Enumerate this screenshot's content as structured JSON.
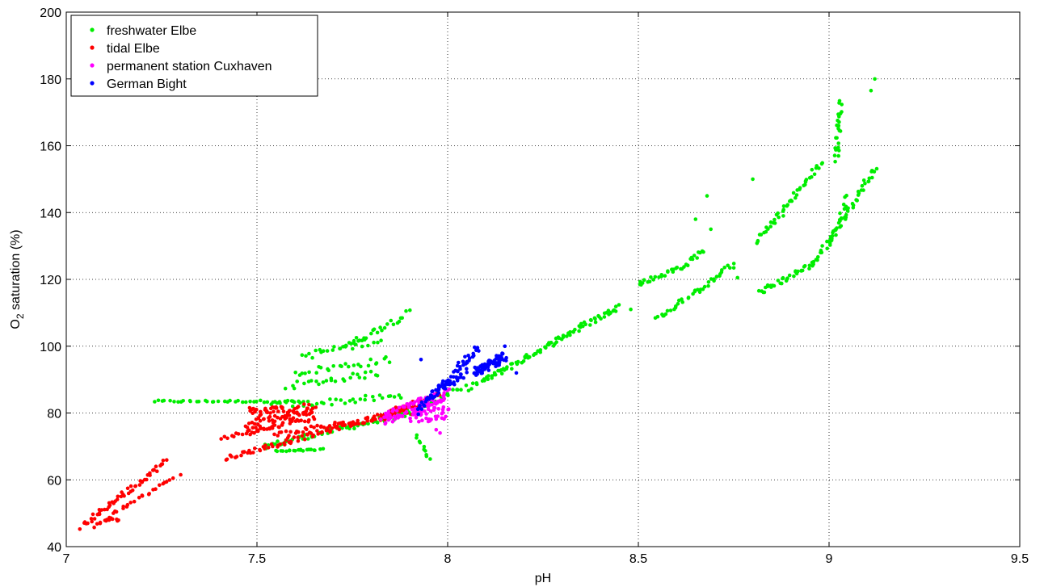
{
  "chart_data": {
    "type": "scatter",
    "title": "",
    "xlabel": "pH",
    "ylabel_main": "O",
    "ylabel_sub": "2",
    "ylabel_rest": " saturation (%)",
    "xlim": [
      7,
      9.5
    ],
    "ylim": [
      40,
      200
    ],
    "xticks": [
      7,
      7.5,
      8,
      8.5,
      9,
      9.5
    ],
    "xtick_labels": [
      "7",
      "7.5",
      "8",
      "8.5",
      "9",
      "9.5"
    ],
    "yticks": [
      40,
      60,
      80,
      100,
      120,
      140,
      160,
      180,
      200
    ],
    "ytick_labels": [
      "40",
      "60",
      "80",
      "100",
      "120",
      "140",
      "160",
      "180",
      "200"
    ],
    "grid": true,
    "legend_position": "top-left",
    "series": [
      {
        "name": "freshwater Elbe",
        "color": "#00ee00",
        "segments": [
          {
            "from": [
              7.23,
              83.5
            ],
            "to": [
              7.62,
              83.5
            ],
            "n": 40,
            "jitter": 0.3
          },
          {
            "from": [
              7.55,
              68.5
            ],
            "to": [
              7.67,
              69
            ],
            "n": 20,
            "jitter": 0.3
          },
          {
            "from": [
              7.52,
              70
            ],
            "to": [
              7.9,
              80
            ],
            "n": 60,
            "jitter": 0.8
          },
          {
            "from": [
              7.54,
              82
            ],
            "to": [
              7.88,
              85
            ],
            "n": 35,
            "jitter": 1.0
          },
          {
            "from": [
              7.58,
              88
            ],
            "to": [
              7.82,
              92
            ],
            "n": 25,
            "jitter": 1.0
          },
          {
            "from": [
              7.6,
              92
            ],
            "to": [
              7.85,
              96
            ],
            "n": 25,
            "jitter": 1.0
          },
          {
            "from": [
              7.62,
              97
            ],
            "to": [
              7.82,
              102
            ],
            "n": 25,
            "jitter": 1.2
          },
          {
            "from": [
              7.73,
              100
            ],
            "to": [
              7.9,
              110
            ],
            "n": 25,
            "jitter": 1.0
          },
          {
            "from": [
              7.92,
              73
            ],
            "to": [
              7.95,
              66.5
            ],
            "n": 10,
            "jitter": 0.5
          },
          {
            "from": [
              7.82,
              77
            ],
            "to": [
              8.1,
              90
            ],
            "n": 40,
            "jitter": 1.0
          },
          {
            "from": [
              8.1,
              90
            ],
            "to": [
              8.45,
              112
            ],
            "n": 90,
            "jitter": 0.8
          },
          {
            "from": [
              8.5,
              118.5
            ],
            "to": [
              8.62,
              124
            ],
            "n": 25,
            "jitter": 0.7
          },
          {
            "from": [
              8.62,
              124
            ],
            "to": [
              8.67,
              129
            ],
            "n": 12,
            "jitter": 0.8
          },
          {
            "from": [
              8.55,
              108
            ],
            "to": [
              8.75,
              124.5
            ],
            "n": 40,
            "jitter": 0.8
          },
          {
            "from": [
              8.81,
              131
            ],
            "to": [
              8.98,
              155
            ],
            "n": 45,
            "jitter": 0.8
          },
          {
            "from": [
              8.82,
              116
            ],
            "to": [
              8.96,
              125
            ],
            "n": 35,
            "jitter": 0.8
          },
          {
            "from": [
              8.96,
              125
            ],
            "to": [
              9.05,
              140
            ],
            "n": 25,
            "jitter": 0.9
          },
          {
            "from": [
              9.05,
              140
            ],
            "to": [
              9.12,
              153.5
            ],
            "n": 25,
            "jitter": 0.8
          },
          {
            "from": [
              9.0,
              130
            ],
            "to": [
              9.05,
              145
            ],
            "n": 18,
            "jitter": 0.9
          },
          {
            "from": [
              9.02,
              156
            ],
            "to": [
              9.03,
              173
            ],
            "n": 25,
            "jitter": 0.8
          }
        ],
        "points": [
          [
            8.68,
            145
          ],
          [
            8.8,
            150
          ],
          [
            8.69,
            135
          ],
          [
            9.12,
            180
          ],
          [
            9.11,
            176.5
          ],
          [
            8.88,
            139
          ],
          [
            8.65,
            138
          ],
          [
            8.48,
            111
          ],
          [
            8.76,
            120.5
          ]
        ]
      },
      {
        "name": "tidal Elbe",
        "color": "#ff0000",
        "segments": [
          {
            "from": [
              7.04,
              46
            ],
            "to": [
              7.26,
              65.5
            ],
            "n": 55,
            "jitter": 0.8
          },
          {
            "from": [
              7.07,
              46
            ],
            "to": [
              7.27,
              60
            ],
            "n": 28,
            "jitter": 0.6
          },
          {
            "from": [
              7.1,
              48
            ],
            "to": [
              7.14,
              48
            ],
            "n": 8,
            "jitter": 0.3
          },
          {
            "from": [
              7.41,
              72.5
            ],
            "to": [
              7.55,
              76
            ],
            "n": 20,
            "jitter": 0.6
          },
          {
            "from": [
              7.42,
              66.5
            ],
            "to": [
              7.92,
              82
            ],
            "n": 90,
            "jitter": 0.7
          },
          {
            "from": [
              7.47,
              76
            ],
            "to": [
              7.65,
              79
            ],
            "n": 60,
            "jitter": 1.8
          },
          {
            "from": [
              7.48,
              80
            ],
            "to": [
              7.65,
              81
            ],
            "n": 60,
            "jitter": 1.8
          },
          {
            "from": [
              7.55,
              73
            ],
            "to": [
              7.92,
              81
            ],
            "n": 60,
            "jitter": 1.2
          },
          {
            "from": [
              7.85,
              80
            ],
            "to": [
              7.98,
              85
            ],
            "n": 30,
            "jitter": 1.2
          }
        ],
        "points": [
          [
            7.3,
            61.5
          ],
          [
            7.28,
            60.5
          ]
        ]
      },
      {
        "name": "permanent station Cuxhaven",
        "color": "#ff00ff",
        "segments": [
          {
            "from": [
              7.83,
              78
            ],
            "to": [
              8.0,
              86
            ],
            "n": 90,
            "jitter": 1.8
          },
          {
            "from": [
              7.9,
              79
            ],
            "to": [
              8.0,
              80
            ],
            "n": 40,
            "jitter": 2.0
          }
        ],
        "points": [
          [
            7.97,
            75
          ],
          [
            7.98,
            74
          ]
        ]
      },
      {
        "name": "German Bight",
        "color": "#0000ff",
        "segments": [
          {
            "from": [
              7.92,
              80
            ],
            "to": [
              8.08,
              100
            ],
            "n": 60,
            "jitter": 1.2
          },
          {
            "from": [
              7.95,
              85
            ],
            "to": [
              8.05,
              92
            ],
            "n": 30,
            "jitter": 1.3
          },
          {
            "from": [
              8.07,
              92
            ],
            "to": [
              8.15,
              97
            ],
            "n": 70,
            "jitter": 1.5
          }
        ],
        "points": [
          [
            7.93,
            96
          ],
          [
            8.15,
            100
          ],
          [
            8.18,
            92
          ]
        ]
      }
    ]
  }
}
